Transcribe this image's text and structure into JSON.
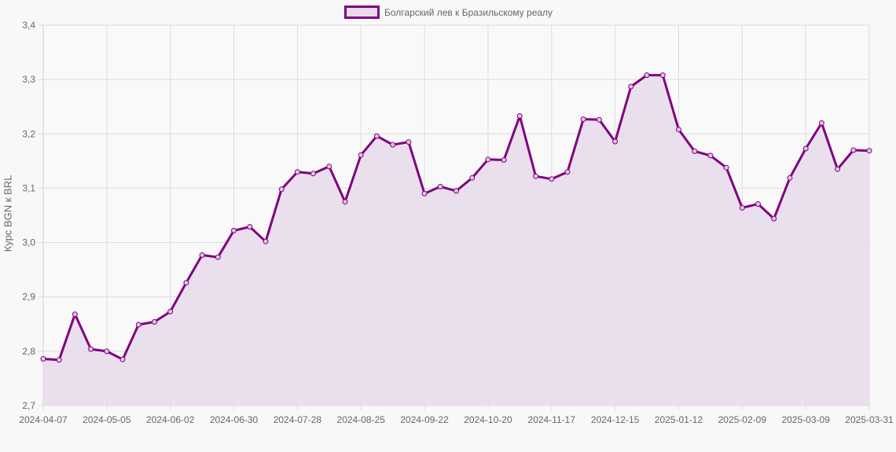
{
  "chart_data": {
    "type": "line",
    "title": "",
    "legend": [
      "Болгарский лев к Бразильскому реалу"
    ],
    "legend_position": "top",
    "xlabel": "",
    "ylabel": "Курс BGN к BRL",
    "ylim": [
      2.7,
      3.4
    ],
    "y_ticks": [
      "2,7",
      "2,8",
      "2,9",
      "3,0",
      "3,1",
      "3,2",
      "3,3",
      "3,4"
    ],
    "x_tick_labels": [
      "2024-04-07",
      "2024-05-05",
      "2024-06-02",
      "2024-06-30",
      "2024-07-28",
      "2024-08-25",
      "2024-09-22",
      "2024-10-20",
      "2024-11-17",
      "2024-12-15",
      "2025-01-12",
      "2025-02-09",
      "2025-03-09",
      "2025-03-31"
    ],
    "grid": true,
    "colors": {
      "line": "#800080",
      "fill": "#e8dbea",
      "grid": "#dcdcdc",
      "background": "#f8f8f8"
    },
    "x": [
      "2024-04-07",
      "2024-04-14",
      "2024-04-21",
      "2024-04-28",
      "2024-05-05",
      "2024-05-12",
      "2024-05-19",
      "2024-05-26",
      "2024-06-02",
      "2024-06-09",
      "2024-06-16",
      "2024-06-23",
      "2024-06-30",
      "2024-07-07",
      "2024-07-14",
      "2024-07-21",
      "2024-07-28",
      "2024-08-04",
      "2024-08-11",
      "2024-08-18",
      "2024-08-25",
      "2024-09-01",
      "2024-09-08",
      "2024-09-15",
      "2024-09-22",
      "2024-09-29",
      "2024-10-06",
      "2024-10-13",
      "2024-10-20",
      "2024-10-27",
      "2024-11-03",
      "2024-11-10",
      "2024-11-17",
      "2024-11-24",
      "2024-12-01",
      "2024-12-08",
      "2024-12-15",
      "2024-12-22",
      "2024-12-29",
      "2025-01-05",
      "2025-01-12",
      "2025-01-19",
      "2025-01-26",
      "2025-02-02",
      "2025-02-09",
      "2025-02-16",
      "2025-02-23",
      "2025-03-02",
      "2025-03-09",
      "2025-03-16",
      "2025-03-23",
      "2025-03-30",
      "2025-03-31"
    ],
    "series": [
      {
        "name": "Болгарский лев к Бразильскому реалу",
        "values": [
          2.786,
          2.784,
          2.868,
          2.804,
          2.8,
          2.785,
          2.849,
          2.854,
          2.873,
          2.926,
          2.977,
          2.973,
          3.022,
          3.029,
          3.002,
          3.098,
          3.13,
          3.127,
          3.14,
          3.075,
          3.161,
          3.196,
          3.18,
          3.185,
          3.09,
          3.103,
          3.095,
          3.119,
          3.153,
          3.152,
          3.233,
          3.122,
          3.117,
          3.13,
          3.227,
          3.226,
          3.186,
          3.287,
          3.308,
          3.308,
          3.208,
          3.168,
          3.16,
          3.138,
          3.064,
          3.071,
          3.044,
          3.119,
          3.173,
          3.22,
          3.135,
          3.17,
          3.169
        ]
      }
    ]
  }
}
